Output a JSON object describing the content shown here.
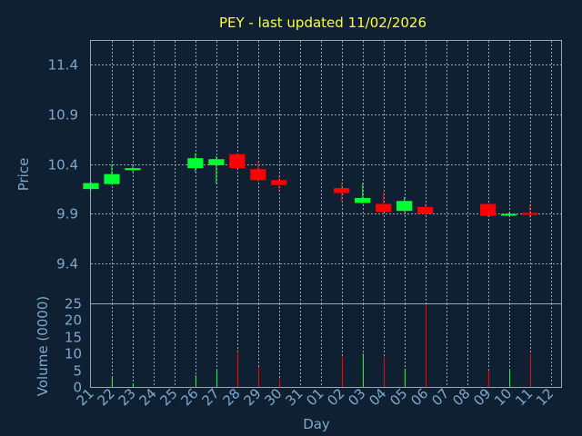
{
  "title": "PEY - last updated 11/02/2026",
  "colors": {
    "background": "#0f2032",
    "up": "#00ff33",
    "down": "#ff0000",
    "text": "#7fa8cc",
    "title": "#ffff33",
    "grid": "#9aa6b2"
  },
  "chart_data": [
    {
      "type": "candlestick",
      "ylabel": "Price",
      "ylim": [
        9.0,
        11.64
      ],
      "yticks": [
        "11.4",
        "10.9",
        "10.4",
        "9.9",
        "9.4"
      ],
      "grid": true,
      "categories": [
        "21",
        "22",
        "23",
        "24",
        "25",
        "26",
        "27",
        "28",
        "29",
        "30",
        "31",
        "01",
        "02",
        "03",
        "04",
        "05",
        "06",
        "07",
        "08",
        "09",
        "10",
        "11",
        "12"
      ],
      "candles": [
        {
          "day": "21",
          "open": 10.15,
          "close": 10.21,
          "high": 10.22,
          "low": 10.14
        },
        {
          "day": "22",
          "open": 10.2,
          "close": 10.3,
          "high": 10.4,
          "low": 10.19
        },
        {
          "day": "23",
          "open": 10.34,
          "close": 10.36,
          "high": 10.38,
          "low": 10.32
        },
        {
          "day": "26",
          "open": 10.36,
          "close": 10.46,
          "high": 10.51,
          "low": 10.32
        },
        {
          "day": "27",
          "open": 10.39,
          "close": 10.45,
          "high": 10.48,
          "low": 10.2
        },
        {
          "day": "28",
          "open": 10.5,
          "close": 10.36,
          "high": 10.51,
          "low": 10.35
        },
        {
          "day": "29",
          "open": 10.35,
          "close": 10.24,
          "high": 10.43,
          "low": 10.23
        },
        {
          "day": "30",
          "open": 10.24,
          "close": 10.19,
          "high": 10.28,
          "low": 10.13
        },
        {
          "day": "02",
          "open": 10.16,
          "close": 10.11,
          "high": 10.22,
          "low": 10.02
        },
        {
          "day": "03",
          "open": 10.01,
          "close": 10.06,
          "high": 10.21,
          "low": 10.0
        },
        {
          "day": "04",
          "open": 10.0,
          "close": 9.92,
          "high": 10.12,
          "low": 9.91
        },
        {
          "day": "05",
          "open": 9.93,
          "close": 10.03,
          "high": 10.07,
          "low": 9.92
        },
        {
          "day": "06",
          "open": 9.97,
          "close": 9.9,
          "high": 10.0,
          "low": 9.89
        },
        {
          "day": "09",
          "open": 10.0,
          "close": 9.88,
          "high": 10.01,
          "low": 9.87
        },
        {
          "day": "10",
          "open": 9.89,
          "close": 9.9,
          "high": 9.91,
          "low": 9.88
        },
        {
          "day": "11",
          "open": 9.91,
          "close": 9.89,
          "high": 9.99,
          "low": 9.86
        }
      ]
    },
    {
      "type": "bar",
      "ylabel": "Volume (0000)",
      "xlabel": "Day",
      "ylim": [
        0,
        25
      ],
      "yticks": [
        "0",
        "5",
        "10",
        "15",
        "20",
        "25"
      ],
      "categories": [
        "21",
        "22",
        "23",
        "24",
        "25",
        "26",
        "27",
        "28",
        "29",
        "30",
        "31",
        "01",
        "02",
        "03",
        "04",
        "05",
        "06",
        "07",
        "08",
        "09",
        "10",
        "11",
        "12"
      ],
      "volumes": [
        {
          "day": "22",
          "value": 3,
          "color": "up"
        },
        {
          "day": "23",
          "value": 1,
          "color": "up"
        },
        {
          "day": "26",
          "value": 3.5,
          "color": "up"
        },
        {
          "day": "27",
          "value": 5,
          "color": "up"
        },
        {
          "day": "28",
          "value": 10.5,
          "color": "down"
        },
        {
          "day": "29",
          "value": 6,
          "color": "down"
        },
        {
          "day": "30",
          "value": 2.5,
          "color": "down"
        },
        {
          "day": "02",
          "value": 9,
          "color": "down"
        },
        {
          "day": "03",
          "value": 10,
          "color": "up"
        },
        {
          "day": "04",
          "value": 9,
          "color": "down"
        },
        {
          "day": "05",
          "value": 5.5,
          "color": "up"
        },
        {
          "day": "06",
          "value": 25,
          "color": "down"
        },
        {
          "day": "09",
          "value": 5,
          "color": "down"
        },
        {
          "day": "10",
          "value": 5,
          "color": "up"
        },
        {
          "day": "11",
          "value": 10,
          "color": "down"
        }
      ]
    }
  ]
}
